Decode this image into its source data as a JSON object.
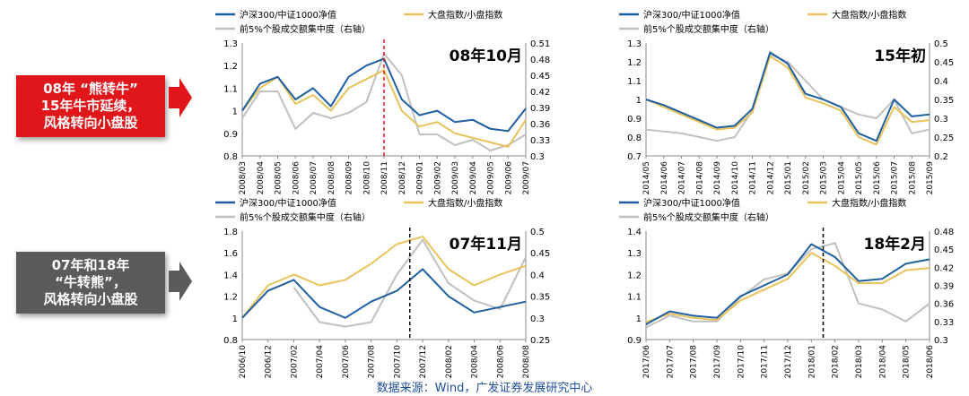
{
  "callouts": [
    {
      "text": "08年 “熊转牛”\n15年牛市延续，\n风格转向小盘股",
      "color": "#e0161a"
    },
    {
      "text": "07年和18年\n“牛转熊”，\n风格转向小盘股",
      "color": "#5b5b5b"
    }
  ],
  "source": "数据来源：Wind，广发证券发展研究中心",
  "colors": {
    "hs300": "#1f5fa0",
    "bigsmall": "#e8c25a",
    "concentration": "#c0c0c0",
    "marker_red": "#e0161a",
    "marker_black": "#000000"
  },
  "chart_data": [
    {
      "type": "line",
      "annotation": "08年10月",
      "legend": [
        "沪深300/中证1000净值",
        "大盘指数/小盘指数",
        "前5%个股成交额集中度（右轴）"
      ],
      "x": [
        "2008/03",
        "2008/04",
        "2008/05",
        "2008/06",
        "2008/07",
        "2008/08",
        "2008/09",
        "2008/10",
        "2008/11",
        "2008/12",
        "2009/01",
        "2009/02",
        "2009/03",
        "2009/04",
        "2009/05",
        "2009/06",
        "2009/07"
      ],
      "xlabels": [
        "2008/03",
        "2008/04",
        "2008/05",
        "2008/06",
        "2008/07",
        "2008/08",
        "2008/09",
        "2008/10",
        "2008/11",
        "2008/12",
        "2009/01",
        "2009/02",
        "2009/03",
        "2009/04",
        "2009/05",
        "2009/06",
        "2009/07"
      ],
      "ylim": [
        0.8,
        1.3
      ],
      "yticks": [
        "0.8",
        "0.9",
        "1",
        "1.1",
        "1.2",
        "1.3"
      ],
      "y2lim": [
        0.3,
        0.51
      ],
      "y2ticks": [
        "0.3",
        "0.33",
        "0.36",
        "0.39",
        "0.42",
        "0.45",
        "0.48",
        "0.51"
      ],
      "marker_index": 8,
      "marker_color": "red",
      "series": [
        {
          "name": "沪深300/中证1000净值",
          "axis": "left",
          "values": [
            1.0,
            1.12,
            1.15,
            1.05,
            1.1,
            1.02,
            1.15,
            1.2,
            1.23,
            1.05,
            0.98,
            1.0,
            0.95,
            0.96,
            0.92,
            0.91,
            1.01
          ]
        },
        {
          "name": "大盘指数/小盘指数",
          "axis": "left",
          "values": [
            1.0,
            1.1,
            1.15,
            1.03,
            1.07,
            1.0,
            1.1,
            1.14,
            1.18,
            1.0,
            0.93,
            0.95,
            0.9,
            0.88,
            0.86,
            0.84,
            0.96
          ]
        },
        {
          "name": "前5%个股成交额集中度（右轴）",
          "axis": "right",
          "values": [
            0.37,
            0.42,
            0.42,
            0.35,
            0.38,
            0.37,
            0.38,
            0.4,
            0.49,
            0.45,
            0.34,
            0.34,
            0.32,
            0.33,
            0.31,
            0.32,
            0.34
          ]
        }
      ]
    },
    {
      "type": "line",
      "annotation": "15年初",
      "legend": [
        "沪深300/中证1000净值",
        "大盘指数/小盘指数",
        "前5%个股成交额集中度（右轴）"
      ],
      "x": [
        "2014/05",
        "2014/06",
        "2014/07",
        "2014/08",
        "2014/09",
        "2014/10",
        "2014/11",
        "2014/12",
        "2015/01",
        "2015/02",
        "2015/03",
        "2015/04",
        "2015/05",
        "2015/06",
        "2015/07",
        "2015/08",
        "2015/09"
      ],
      "xlabels": [
        "2014/05",
        "2014/06",
        "2014/07",
        "2014/08",
        "2014/09",
        "2014/10",
        "2014/11",
        "2014/12",
        "2015/01",
        "2015/02",
        "2015/03",
        "2015/04",
        "2015/05",
        "2015/06",
        "2015/07",
        "2015/08",
        "2015/09"
      ],
      "ylim": [
        0.7,
        1.3
      ],
      "yticks": [
        "0.7",
        "0.8",
        "0.9",
        "1",
        "1.1",
        "1.2",
        "1.3"
      ],
      "y2lim": [
        0.2,
        0.5
      ],
      "y2ticks": [
        "0.2",
        "0.25",
        "0.3",
        "0.35",
        "0.4",
        "0.45",
        "0.5"
      ],
      "marker_index": null,
      "marker_color": null,
      "series": [
        {
          "name": "沪深300/中证1000净值",
          "axis": "left",
          "values": [
            1.0,
            0.97,
            0.93,
            0.89,
            0.85,
            0.86,
            0.95,
            1.25,
            1.19,
            1.03,
            1.0,
            0.96,
            0.82,
            0.78,
            1.0,
            0.91,
            0.92
          ]
        },
        {
          "name": "大盘指数/小盘指数",
          "axis": "left",
          "values": [
            1.0,
            0.96,
            0.92,
            0.88,
            0.84,
            0.85,
            0.93,
            1.23,
            1.17,
            1.01,
            0.98,
            0.94,
            0.8,
            0.76,
            0.96,
            0.88,
            0.89
          ]
        },
        {
          "name": "前5%个股成交额集中度（右轴）",
          "axis": "right",
          "values": [
            0.27,
            0.265,
            0.26,
            0.25,
            0.24,
            0.25,
            0.32,
            0.47,
            0.45,
            0.4,
            0.35,
            0.33,
            0.31,
            0.3,
            0.35,
            0.26,
            0.27
          ]
        }
      ]
    },
    {
      "type": "line",
      "annotation": "07年11月",
      "legend": [
        "沪深300/中证1000净值",
        "大盘指数/小盘指数",
        "前5%个股成交额集中度（右轴）"
      ],
      "x": [
        "2006/10",
        "2006/12",
        "2007/02",
        "2007/04",
        "2007/06",
        "2007/08",
        "2007/10",
        "2007/12",
        "2008/02",
        "2008/04",
        "2008/06",
        "2008/08"
      ],
      "xlabels": [
        "2006/10",
        "2006/12",
        "2007/02",
        "2007/04",
        "2007/06",
        "2007/08",
        "2007/10",
        "2007/12",
        "2008/02",
        "2008/04",
        "2008/06",
        "2008/08"
      ],
      "ylim": [
        0.8,
        1.8
      ],
      "yticks": [
        "0.8",
        "1",
        "1.2",
        "1.4",
        "1.6",
        "1.8"
      ],
      "y2lim": [
        0.25,
        0.5
      ],
      "y2ticks": [
        "0.25",
        "0.3",
        "0.35",
        "0.4",
        "0.45",
        "0.5"
      ],
      "marker_index": 6.5,
      "marker_color": "black",
      "series": [
        {
          "name": "沪深300/中证1000净值",
          "axis": "left",
          "values": [
            1.0,
            1.25,
            1.35,
            1.1,
            1.0,
            1.15,
            1.25,
            1.45,
            1.2,
            1.05,
            1.1,
            1.15
          ]
        },
        {
          "name": "大盘指数/小盘指数",
          "axis": "left",
          "values": [
            1.0,
            1.3,
            1.4,
            1.3,
            1.35,
            1.5,
            1.68,
            1.75,
            1.45,
            1.3,
            1.4,
            1.48
          ]
        },
        {
          "name": "前5%个股成交额集中度（右轴）",
          "axis": "right",
          "values": [
            null,
            null,
            0.37,
            0.29,
            0.28,
            0.29,
            0.4,
            0.48,
            0.38,
            0.34,
            0.32,
            0.44
          ]
        }
      ]
    },
    {
      "type": "line",
      "annotation": "18年2月",
      "legend": [
        "沪深300/中证1000净值",
        "大盘指数/小盘指数",
        "前5%个股成交额集中度（右轴）"
      ],
      "x": [
        "2017/06",
        "2017/07",
        "2017/08",
        "2017/09",
        "2017/10",
        "2017/11",
        "2017/12",
        "2018/01",
        "2018/02",
        "2018/03",
        "2018/04",
        "2018/05",
        "2018/06"
      ],
      "xlabels": [
        "2017/06",
        "2017/07",
        "2017/08",
        "2017/09",
        "2017/10",
        "2017/11",
        "2017/12",
        "2018/01",
        "2018/02",
        "2018/03",
        "2018/04",
        "2018/05",
        "2018/06"
      ],
      "ylim": [
        0.9,
        1.4
      ],
      "yticks": [
        "0.9",
        "1",
        "1.1",
        "1.2",
        "1.3",
        "1.4"
      ],
      "y2lim": [
        0.3,
        0.48
      ],
      "y2ticks": [
        "0.3",
        "0.33",
        "0.36",
        "0.39",
        "0.42",
        "0.45",
        "0.48"
      ],
      "marker_index": 7.5,
      "marker_color": "black",
      "series": [
        {
          "name": "沪深300/中证1000净值",
          "axis": "left",
          "values": [
            0.97,
            1.03,
            1.01,
            1.0,
            1.1,
            1.15,
            1.2,
            1.34,
            1.28,
            1.17,
            1.18,
            1.25,
            1.27
          ]
        },
        {
          "name": "大盘指数/小盘指数",
          "axis": "left",
          "values": [
            0.98,
            1.02,
            1.0,
            0.99,
            1.08,
            1.13,
            1.18,
            1.3,
            1.24,
            1.16,
            1.16,
            1.22,
            1.23
          ]
        },
        {
          "name": "前5%个股成交额集中度（右轴）",
          "axis": "right",
          "values": [
            0.32,
            0.34,
            0.33,
            0.33,
            0.37,
            0.4,
            0.41,
            0.45,
            0.46,
            0.36,
            0.35,
            0.33,
            0.36
          ]
        }
      ]
    }
  ]
}
